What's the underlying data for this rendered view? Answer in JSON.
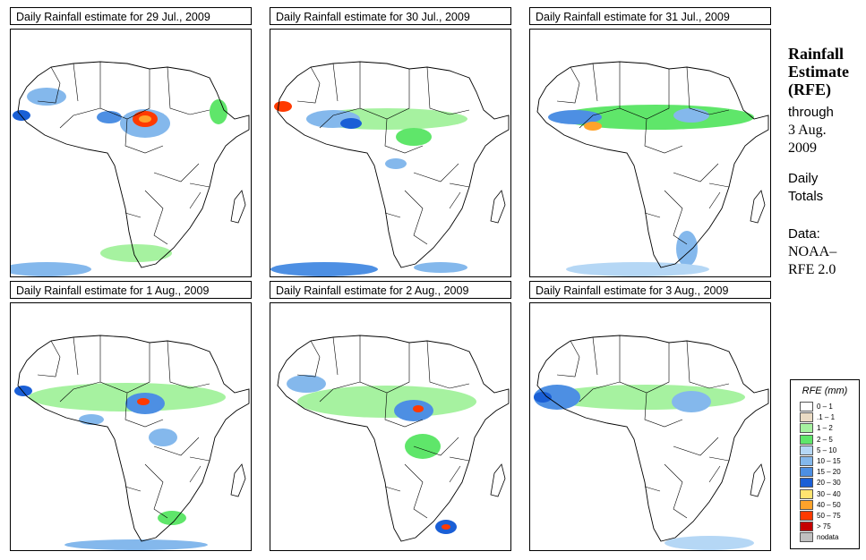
{
  "panels": [
    {
      "title": "Daily Rainfall estimate for  29 Jul., 2009"
    },
    {
      "title": "Daily Rainfall estimate for  30 Jul., 2009"
    },
    {
      "title": "Daily Rainfall estimate for  31 Jul., 2009"
    },
    {
      "title": "Daily Rainfall estimate for  1 Aug., 2009"
    },
    {
      "title": "Daily Rainfall estimate for  2 Aug., 2009"
    },
    {
      "title": "Daily Rainfall estimate for  3 Aug., 2009"
    }
  ],
  "sidebar": {
    "title_line1": "Rainfall",
    "title_line2": "Estimate",
    "title_line3": "(RFE)",
    "through": "through",
    "date_line1": "3 Aug.",
    "date_line2": "2009",
    "totals_line1": "Daily",
    "totals_line2": "Totals",
    "data_line1": "Data:",
    "data_line2": "NOAA–",
    "data_line3": "RFE 2.0"
  },
  "legend": {
    "title": "RFE (mm)",
    "items": [
      {
        "label": "0 – 1",
        "color": "#ffffff"
      },
      {
        "label": ".1 – 1",
        "color": "#eadbc4"
      },
      {
        "label": "1 – 2",
        "color": "#a6f2a0"
      },
      {
        "label": "2 – 5",
        "color": "#5fe66a"
      },
      {
        "label": "5 – 10",
        "color": "#b5d7f5"
      },
      {
        "label": "10 – 15",
        "color": "#84b8ec"
      },
      {
        "label": "15 – 20",
        "color": "#4d8fe3"
      },
      {
        "label": "20 – 30",
        "color": "#1a5fd6"
      },
      {
        "label": "30 – 40",
        "color": "#ffe470"
      },
      {
        "label": "40 – 50",
        "color": "#ffa32b"
      },
      {
        "label": "50 – 75",
        "color": "#ff3a00"
      },
      {
        "label": "> 75",
        "color": "#c40000"
      },
      {
        "label": "nodata",
        "color": "#c0c0c0"
      }
    ]
  }
}
